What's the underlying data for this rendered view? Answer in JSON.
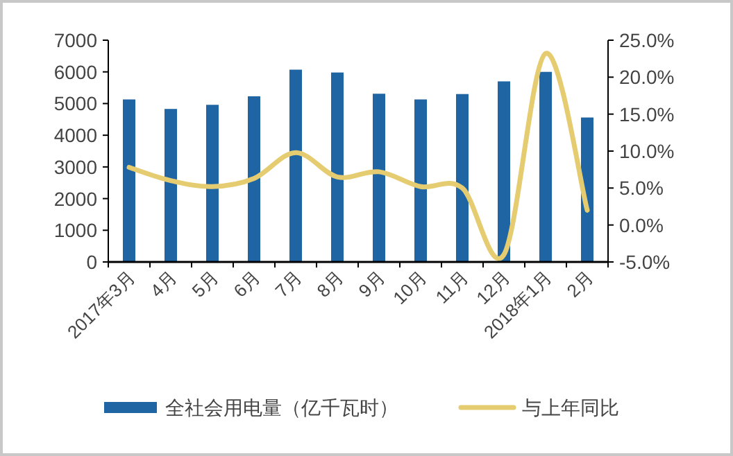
{
  "chart_data": {
    "type": "bar",
    "categories": [
      "2017年3月",
      "4月",
      "5月",
      "6月",
      "7月",
      "8月",
      "9月",
      "10月",
      "11月",
      "12月",
      "2018年1月",
      "2月"
    ],
    "series": [
      {
        "name": "全社会用电量（亿千瓦时）",
        "color": "#1f64a3",
        "values": [
          5130,
          4830,
          4960,
          5230,
          6070,
          5980,
          5310,
          5130,
          5300,
          5700,
          6000,
          4560
        ]
      },
      {
        "name": "与上年同比",
        "type": "line",
        "axis": "y2",
        "color": "#e6cc70",
        "values": [
          7.8,
          6.0,
          5.2,
          6.3,
          9.8,
          6.5,
          7.2,
          5.2,
          5.0,
          -4.0,
          23.2,
          2.0
        ]
      }
    ],
    "ylim": [
      0,
      7000
    ],
    "yticks": [
      0,
      1000,
      2000,
      3000,
      4000,
      5000,
      6000,
      7000
    ],
    "y2lim": [
      -5,
      25
    ],
    "y2ticks": [
      {
        "value": -5,
        "label": "-5.0%"
      },
      {
        "value": 0,
        "label": "0.0%"
      },
      {
        "value": 5,
        "label": "5.0%"
      },
      {
        "value": 10,
        "label": "10.0%"
      },
      {
        "value": 15,
        "label": "15.0%"
      },
      {
        "value": 20,
        "label": "20.0%"
      },
      {
        "value": 25,
        "label": "25.0%"
      }
    ],
    "legend": "bottom"
  }
}
